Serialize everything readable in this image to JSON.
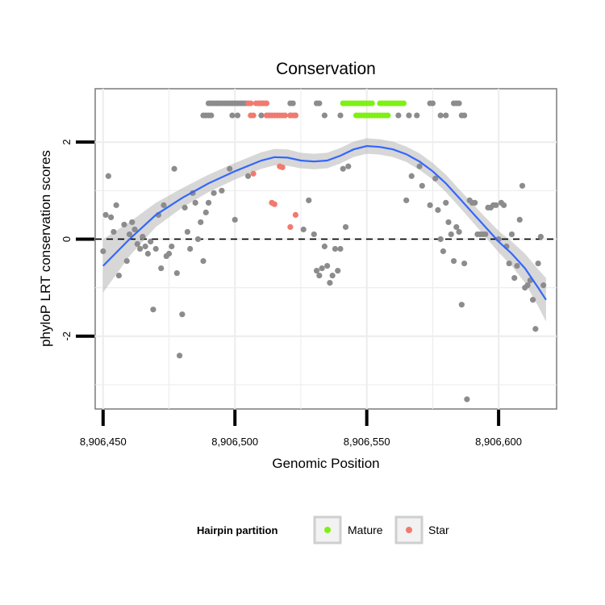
{
  "chart_data": {
    "type": "scatter",
    "title": "Conservation",
    "xlabel": "Genomic Position",
    "ylabel": "phyloP LRT conservation scores",
    "xlim": [
      8906447,
      8906622
    ],
    "ylim": [
      -3.5,
      3.1
    ],
    "x_ticks": [
      8906450,
      8906500,
      8906550,
      8906600
    ],
    "x_tick_labels": [
      "8,906,450",
      "8,906,500",
      "8,906,550",
      "8,906,600"
    ],
    "y_ticks": [
      -2,
      0,
      2
    ],
    "y_tick_labels": [
      "-2",
      "0",
      "2"
    ],
    "reference_line": {
      "y": 0,
      "style": "dashed"
    },
    "legend": {
      "title": "Hairpin partition",
      "entries": [
        {
          "label": "Mature",
          "color": "#7ff014"
        },
        {
          "label": "Star",
          "color": "#f07a70"
        }
      ]
    },
    "colors": {
      "other": "#8c8c8c",
      "mature": "#7ff014",
      "star": "#f07a70",
      "smooth": "#3366ff",
      "band": "#bdbdbd"
    },
    "smooth": {
      "x": [
        8906450,
        8906460,
        8906470,
        8906480,
        8906490,
        8906500,
        8906510,
        8906515,
        8906520,
        8906525,
        8906530,
        8906535,
        8906540,
        8906545,
        8906550,
        8906555,
        8906560,
        8906565,
        8906570,
        8906575,
        8906580,
        8906585,
        8906590,
        8906595,
        8906600,
        8906605,
        8906610,
        8906615,
        8906618
      ],
      "y": [
        -0.55,
        0.0,
        0.5,
        0.85,
        1.15,
        1.4,
        1.62,
        1.69,
        1.68,
        1.62,
        1.6,
        1.62,
        1.72,
        1.85,
        1.92,
        1.9,
        1.85,
        1.75,
        1.6,
        1.4,
        1.15,
        0.85,
        0.55,
        0.25,
        -0.05,
        -0.3,
        -0.6,
        -1.0,
        -1.25
      ],
      "se": [
        0.55,
        0.35,
        0.25,
        0.2,
        0.18,
        0.17,
        0.17,
        0.17,
        0.17,
        0.16,
        0.16,
        0.16,
        0.16,
        0.16,
        0.16,
        0.16,
        0.16,
        0.16,
        0.17,
        0.17,
        0.18,
        0.18,
        0.19,
        0.2,
        0.22,
        0.25,
        0.3,
        0.38,
        0.45
      ]
    },
    "points_other": [
      [
        8906450,
        -0.25
      ],
      [
        8906452,
        1.3
      ],
      [
        8906451,
        0.5
      ],
      [
        8906453,
        0.45
      ],
      [
        8906455,
        0.7
      ],
      [
        8906454,
        0.15
      ],
      [
        8906456,
        -0.75
      ],
      [
        8906458,
        0.3
      ],
      [
        8906459,
        -0.45
      ],
      [
        8906460,
        0.1
      ],
      [
        8906461,
        0.35
      ],
      [
        8906462,
        0.2
      ],
      [
        8906463,
        -0.1
      ],
      [
        8906464,
        -0.2
      ],
      [
        8906465,
        0.05
      ],
      [
        8906466,
        -0.15
      ],
      [
        8906467,
        -0.3
      ],
      [
        8906468,
        -0.05
      ],
      [
        8906469,
        -1.45
      ],
      [
        8906470,
        -0.2
      ],
      [
        8906471,
        0.5
      ],
      [
        8906472,
        -0.6
      ],
      [
        8906473,
        0.7
      ],
      [
        8906474,
        -0.35
      ],
      [
        8906475,
        -0.3
      ],
      [
        8906476,
        -0.15
      ],
      [
        8906477,
        1.45
      ],
      [
        8906478,
        -0.7
      ],
      [
        8906479,
        -2.4
      ],
      [
        8906480,
        -1.55
      ],
      [
        8906481,
        0.65
      ],
      [
        8906482,
        0.15
      ],
      [
        8906483,
        -0.2
      ],
      [
        8906484,
        0.95
      ],
      [
        8906485,
        0.75
      ],
      [
        8906486,
        0.0
      ],
      [
        8906487,
        0.35
      ],
      [
        8906488,
        -0.45
      ],
      [
        8906489,
        0.55
      ],
      [
        8906490,
        0.75
      ],
      [
        8906492,
        0.95
      ],
      [
        8906495,
        1.0
      ],
      [
        8906498,
        1.45
      ],
      [
        8906500,
        0.4
      ],
      [
        8906505,
        1.3
      ],
      [
        8906526,
        0.2
      ],
      [
        8906528,
        0.8
      ],
      [
        8906530,
        0.1
      ],
      [
        8906531,
        -0.65
      ],
      [
        8906532,
        -0.75
      ],
      [
        8906533,
        -0.6
      ],
      [
        8906534,
        -0.15
      ],
      [
        8906535,
        -0.55
      ],
      [
        8906536,
        -0.9
      ],
      [
        8906537,
        -0.75
      ],
      [
        8906538,
        -0.2
      ],
      [
        8906539,
        -0.65
      ],
      [
        8906540,
        -0.2
      ],
      [
        8906541,
        1.45
      ],
      [
        8906542,
        0.25
      ],
      [
        8906543,
        1.5
      ],
      [
        8906565,
        0.8
      ],
      [
        8906567,
        1.3
      ],
      [
        8906570,
        1.5
      ],
      [
        8906571,
        1.1
      ],
      [
        8906574,
        0.7
      ],
      [
        8906576,
        1.25
      ],
      [
        8906577,
        0.6
      ],
      [
        8906578,
        0.0
      ],
      [
        8906579,
        -0.25
      ],
      [
        8906580,
        0.75
      ],
      [
        8906581,
        0.35
      ],
      [
        8906582,
        0.1
      ],
      [
        8906583,
        -0.45
      ],
      [
        8906584,
        0.25
      ],
      [
        8906585,
        0.15
      ],
      [
        8906586,
        -1.35
      ],
      [
        8906587,
        -0.5
      ],
      [
        8906588,
        -3.3
      ],
      [
        8906589,
        0.8
      ],
      [
        8906590,
        0.75
      ],
      [
        8906591,
        0.75
      ],
      [
        8906592,
        0.1
      ],
      [
        8906593,
        0.1
      ],
      [
        8906594,
        0.1
      ],
      [
        8906595,
        0.1
      ],
      [
        8906596,
        0.65
      ],
      [
        8906597,
        0.65
      ],
      [
        8906598,
        0.7
      ],
      [
        8906599,
        0.7
      ],
      [
        8906600,
        0.0
      ],
      [
        8906601,
        0.75
      ],
      [
        8906602,
        0.7
      ],
      [
        8906603,
        -0.15
      ],
      [
        8906604,
        -0.5
      ],
      [
        8906605,
        0.1
      ],
      [
        8906606,
        -0.8
      ],
      [
        8906607,
        -0.55
      ],
      [
        8906608,
        0.4
      ],
      [
        8906609,
        1.1
      ],
      [
        8906610,
        -1.0
      ],
      [
        8906611,
        -0.95
      ],
      [
        8906612,
        -0.85
      ],
      [
        8906613,
        -1.25
      ],
      [
        8906614,
        -1.85
      ],
      [
        8906615,
        -0.5
      ],
      [
        8906616,
        0.05
      ],
      [
        8906617,
        -0.95
      ]
    ],
    "points_star": [
      [
        8906507,
        1.35
      ],
      [
        8906514,
        0.75
      ],
      [
        8906515,
        0.72
      ],
      [
        8906517,
        1.5
      ],
      [
        8906518,
        1.48
      ],
      [
        8906521,
        0.25
      ],
      [
        8906523,
        0.5
      ]
    ],
    "band_top": {
      "y": 2.8,
      "other": [
        8906490,
        8906491,
        8906492,
        8906493,
        8906494,
        8906495,
        8906496,
        8906497,
        8906498,
        8906499,
        8906500,
        8906501,
        8906502,
        8906503,
        8906504,
        8906510,
        8906511,
        8906521,
        8906522,
        8906531,
        8906532,
        8906574,
        8906575,
        8906583,
        8906584,
        8906585
      ],
      "mature": [
        8906541,
        8906542,
        8906543,
        8906544,
        8906545,
        8906546,
        8906547,
        8906548,
        8906549,
        8906550,
        8906551,
        8906552,
        8906555,
        8906556,
        8906557,
        8906558,
        8906559,
        8906560,
        8906561,
        8906562,
        8906563,
        8906564
      ],
      "star": [
        8906505,
        8906506,
        8906508,
        8906509,
        8906510,
        8906511,
        8906512
      ]
    },
    "band_bottom": {
      "y": 2.55,
      "other": [
        8906488,
        8906489,
        8906490,
        8906491,
        8906499,
        8906501,
        8906510,
        8906513,
        8906521,
        8906523,
        8906534,
        8906540,
        8906562,
        8906566,
        8906569,
        8906578,
        8906580,
        8906586,
        8906587
      ],
      "mature": [
        8906546,
        8906547,
        8906548,
        8906549,
        8906550,
        8906551,
        8906552,
        8906553,
        8906554,
        8906555,
        8906556,
        8906557,
        8906558
      ],
      "star": [
        8906506,
        8906507,
        8906512,
        8906513,
        8906514,
        8906515,
        8906516,
        8906517,
        8906518,
        8906519,
        8906521,
        8906522,
        8906523
      ]
    }
  }
}
